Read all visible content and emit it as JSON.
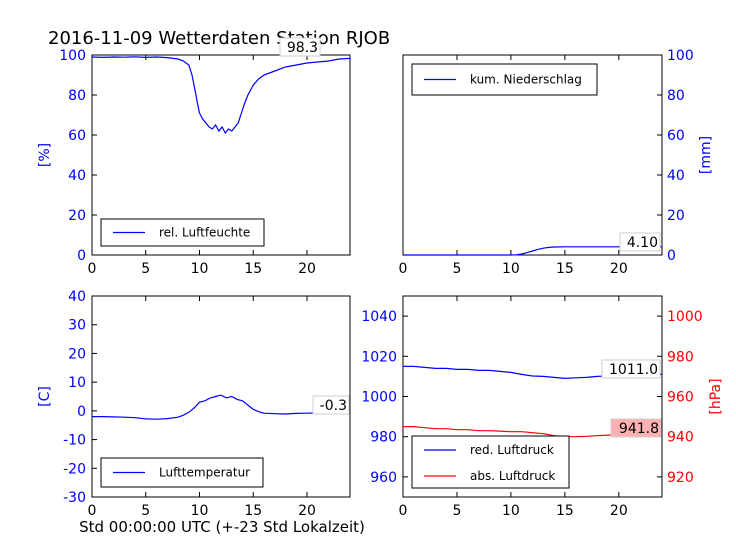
{
  "title": "2016-11-09 Wetterdaten Station RJOB",
  "xlabel": "Std 00:00:00 UTC (+-23 Std Lokalzeit)",
  "colors": {
    "blue": "#0000ff",
    "red": "#ff0000",
    "black": "#000000",
    "badge": "#ffb0b0"
  },
  "chart_data": [
    {
      "id": "humidity",
      "type": "line",
      "title": "",
      "xlabel": "",
      "ylabel": "[%]",
      "xlim": [
        0,
        24
      ],
      "ylim": [
        0,
        100
      ],
      "xticks": [
        "0",
        "5",
        "10",
        "15",
        "20"
      ],
      "yticks": [
        "0",
        "20",
        "40",
        "60",
        "80",
        "100"
      ],
      "y_axis_side": "left",
      "tick_color": "#0000ff",
      "legend_placement": "lower-left",
      "last_value_label": "98.3",
      "series": [
        {
          "name": "rel. Luftfeuchte",
          "color": "#0000ff",
          "x": [
            0,
            1,
            2,
            3,
            4,
            5,
            6,
            7,
            8,
            8.5,
            9,
            9.3,
            9.6,
            9.8,
            10,
            10.3,
            10.6,
            10.9,
            11.2,
            11.5,
            11.8,
            12.1,
            12.4,
            12.7,
            13,
            13.3,
            13.6,
            13.9,
            14.2,
            14.5,
            15,
            15.5,
            16,
            17,
            18,
            19,
            20,
            21,
            22,
            23,
            24
          ],
          "y": [
            99,
            98.8,
            99,
            98.9,
            99.1,
            98.8,
            99,
            98.7,
            98,
            97,
            95,
            90,
            82,
            76,
            71,
            68,
            66,
            64,
            63,
            65,
            62,
            64,
            61,
            63,
            62,
            64,
            66,
            71,
            76,
            80,
            85,
            88,
            90,
            92,
            94,
            95,
            96,
            96.5,
            97,
            98,
            98.3
          ]
        }
      ]
    },
    {
      "id": "precipitation",
      "type": "line",
      "title": "",
      "xlabel": "",
      "ylabel": "[mm]",
      "xlim": [
        0,
        24
      ],
      "ylim": [
        0,
        100
      ],
      "xticks": [
        "0",
        "5",
        "10",
        "15",
        "20"
      ],
      "yticks": [
        "0",
        "20",
        "40",
        "60",
        "80",
        "100"
      ],
      "y_axis_side": "right",
      "tick_color": "#0000ff",
      "legend_placement": "top-left",
      "last_value_label": "4.10",
      "series": [
        {
          "name": "kum. Niederschlag",
          "color": "#0000ff",
          "x": [
            0,
            5,
            10,
            10.5,
            11,
            11.5,
            12,
            12.5,
            13,
            13.5,
            14,
            15,
            16,
            20,
            24
          ],
          "y": [
            0,
            0,
            0,
            0.1,
            0.5,
            1.2,
            2,
            2.8,
            3.4,
            3.8,
            4,
            4.1,
            4.1,
            4.1,
            4.1
          ]
        }
      ]
    },
    {
      "id": "temperature",
      "type": "line",
      "title": "",
      "xlabel": "",
      "ylabel": "[C]",
      "xlim": [
        0,
        24
      ],
      "ylim": [
        -30,
        40
      ],
      "xticks": [
        "0",
        "5",
        "10",
        "15",
        "20"
      ],
      "yticks": [
        "-30",
        "-20",
        "-10",
        "0",
        "10",
        "20",
        "30",
        "40"
      ],
      "y_axis_side": "left",
      "tick_color": "#0000ff",
      "legend_placement": "lower-left",
      "last_value_label": "-0.3",
      "series": [
        {
          "name": "Lufttemperatur",
          "color": "#0000ff",
          "x": [
            0,
            1,
            2,
            3,
            4,
            5,
            6,
            7,
            8,
            8.5,
            9,
            9.5,
            10,
            10.5,
            11,
            11.5,
            12,
            12.5,
            13,
            13.5,
            14,
            14.5,
            15,
            15.5,
            16,
            17,
            18,
            19,
            20,
            21,
            22,
            23,
            24
          ],
          "y": [
            -2,
            -2,
            -2.1,
            -2.2,
            -2.4,
            -2.8,
            -2.9,
            -2.7,
            -2.2,
            -1.5,
            -0.5,
            1,
            3,
            3.5,
            4.5,
            5,
            5.5,
            4.5,
            5,
            4,
            3.5,
            2,
            0.5,
            -0.3,
            -0.8,
            -1,
            -1.1,
            -0.9,
            -0.8,
            -0.7,
            -0.5,
            -0.4,
            -0.3
          ]
        }
      ]
    },
    {
      "id": "pressure",
      "type": "line",
      "title": "",
      "xlabel": "",
      "ylabel": "",
      "ylabel_right": "[hPa]",
      "xlim": [
        0,
        24
      ],
      "ylim": [
        950,
        1050
      ],
      "ylim_right": [
        910,
        1010
      ],
      "xticks": [
        "0",
        "5",
        "10",
        "15",
        "20"
      ],
      "yticks": [
        "960",
        "980",
        "1000",
        "1020",
        "1040"
      ],
      "yticks_right": [
        "920",
        "940",
        "960",
        "980",
        "1000"
      ],
      "tick_color": "#0000ff",
      "tick_color_right": "#ff0000",
      "legend_placement": "lower-left",
      "last_value_label": "1011.0",
      "last_value_label_2": "941.8",
      "series": [
        {
          "name": "red. Luftdruck",
          "color": "#0000ff",
          "axis": "left",
          "x": [
            0,
            1,
            2,
            3,
            4,
            5,
            6,
            7,
            8,
            9,
            10,
            11,
            12,
            13,
            14,
            15,
            16,
            17,
            18,
            19,
            20,
            21,
            22,
            23,
            24
          ],
          "y": [
            1015,
            1015,
            1014.5,
            1014,
            1014,
            1013.5,
            1013.5,
            1013,
            1013,
            1012.5,
            1012,
            1011,
            1010.2,
            1010,
            1009.5,
            1009,
            1009.3,
            1009.5,
            1010,
            1010.2,
            1010.5,
            1010.6,
            1010.8,
            1011,
            1011
          ]
        },
        {
          "name": "abs. Luftdruck",
          "color": "#ff0000",
          "axis": "right",
          "x": [
            0,
            1,
            2,
            3,
            4,
            5,
            6,
            7,
            8,
            9,
            10,
            11,
            12,
            13,
            14,
            15,
            16,
            17,
            18,
            19,
            20,
            21,
            22,
            23,
            24
          ],
          "y": [
            945,
            945,
            944.5,
            944,
            944,
            943.5,
            943.5,
            943,
            943,
            942.8,
            942.5,
            942.5,
            942,
            941.5,
            940.5,
            940,
            940,
            940.2,
            940.5,
            940.8,
            941,
            941.2,
            941.5,
            941.7,
            941.8
          ]
        }
      ]
    }
  ]
}
